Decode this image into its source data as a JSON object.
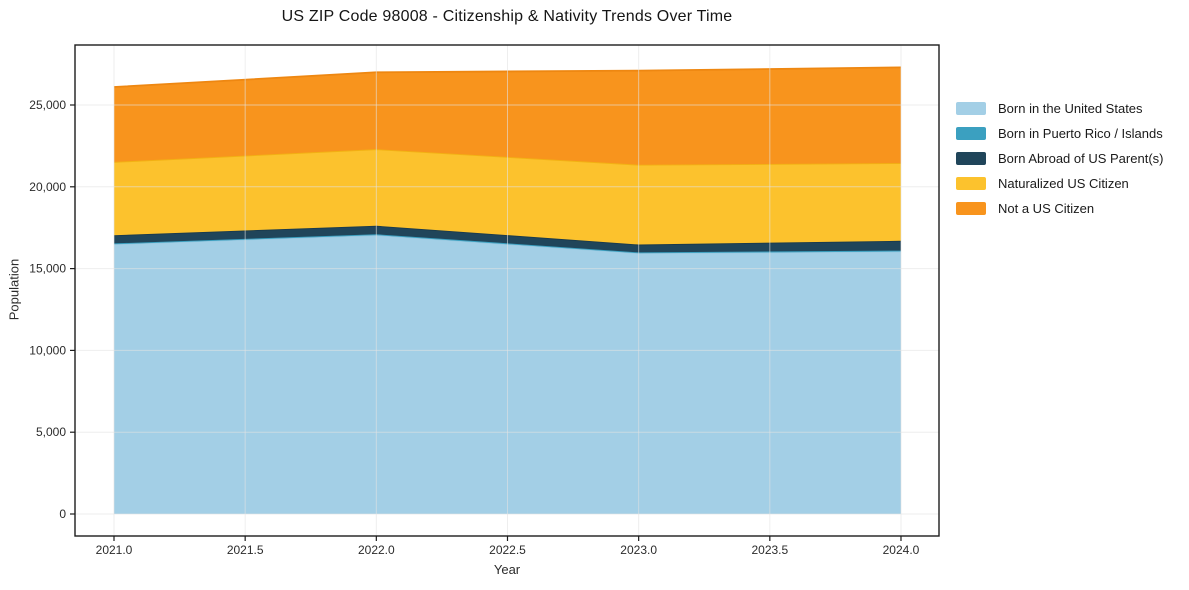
{
  "chart_data": {
    "type": "area",
    "stacked": true,
    "title": "US ZIP Code 98008 - Citizenship & Nativity Trends Over Time",
    "xlabel": "Year",
    "ylabel": "Population",
    "x": [
      2021,
      2022,
      2023,
      2024
    ],
    "series": [
      {
        "name": "Born in the United States",
        "values": [
          16500,
          17050,
          15950,
          16050
        ],
        "color": "#a3cfe6",
        "edge_color": "#98c8e0"
      },
      {
        "name": "Born in Puerto Rico / Islands",
        "values": [
          40,
          50,
          40,
          50
        ],
        "color": "#3ba0c0",
        "edge_color": "#3ba0c0"
      },
      {
        "name": "Born Abroad of US Parent(s)",
        "values": [
          500,
          520,
          480,
          600
        ],
        "color": "#20455a",
        "edge_color": "#1a3a4c"
      },
      {
        "name": "Naturalized US Citizen",
        "values": [
          4480,
          4680,
          4880,
          4750
        ],
        "color": "#fcc22d",
        "edge_color": "#f2b113"
      },
      {
        "name": "Not a US Citizen",
        "values": [
          4580,
          4700,
          5750,
          5850
        ],
        "color": "#f8941d",
        "edge_color": "#ee8711"
      }
    ],
    "xticks": {
      "values": [
        2021.0,
        2021.5,
        2022.0,
        2022.5,
        2023.0,
        2023.5,
        2024.0
      ],
      "labels": [
        "2021.0",
        "2021.5",
        "2022.0",
        "2022.5",
        "2023.0",
        "2023.5",
        "2024.0"
      ]
    },
    "yticks": {
      "values": [
        0,
        5000,
        10000,
        15000,
        20000,
        25000
      ],
      "labels": [
        "0",
        "5,000",
        "10,000",
        "15,000",
        "20,000",
        "25,000"
      ]
    },
    "xlim": [
      2020.85,
      2024.15
    ],
    "ylim": [
      0,
      28700
    ],
    "grid": true,
    "legend_position": "right"
  }
}
